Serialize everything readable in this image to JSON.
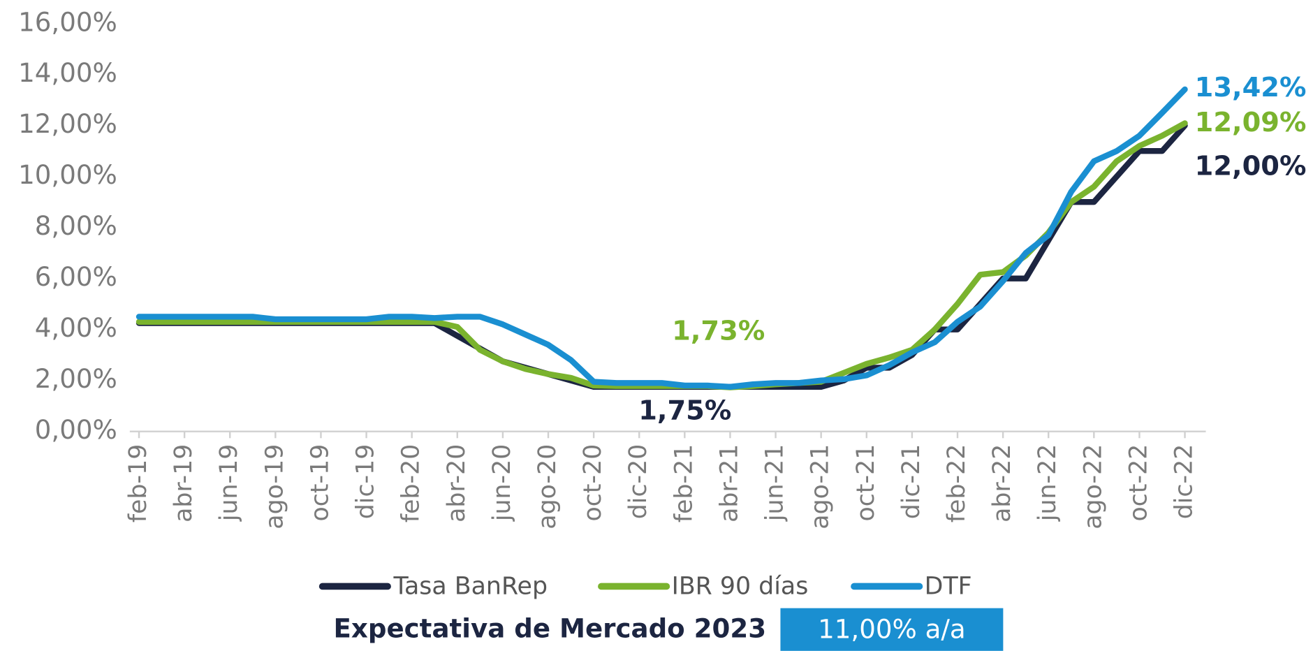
{
  "chart_data": {
    "type": "line",
    "categories": [
      "feb-19",
      null,
      "abr-19",
      null,
      "jun-19",
      null,
      "ago-19",
      null,
      "oct-19",
      null,
      "dic-19",
      null,
      "feb-20",
      null,
      "abr-20",
      null,
      "jun-20",
      null,
      "ago-20",
      null,
      "oct-20",
      null,
      "dic-20",
      null,
      "feb-21",
      null,
      "abr-21",
      null,
      "jun-21",
      null,
      "ago-21",
      null,
      "oct-21",
      null,
      "dic-21",
      null,
      "feb-22",
      null,
      "abr-22",
      null,
      "jun-22",
      null,
      "ago-22",
      null,
      "oct-22",
      null,
      "dic-22"
    ],
    "series": [
      {
        "name": "Tasa BanRep",
        "color": "#1c2541",
        "values": [
          4.25,
          4.25,
          4.25,
          4.25,
          4.25,
          4.25,
          4.25,
          4.25,
          4.25,
          4.25,
          4.25,
          4.25,
          4.25,
          4.25,
          3.75,
          3.25,
          2.75,
          2.5,
          2.25,
          2.0,
          1.75,
          1.75,
          1.75,
          1.75,
          1.75,
          1.75,
          1.75,
          1.75,
          1.75,
          1.75,
          1.75,
          2.0,
          2.5,
          2.5,
          3.0,
          4.0,
          4.0,
          5.0,
          6.0,
          6.0,
          7.5,
          9.0,
          9.0,
          10.0,
          11.0,
          11.0,
          12.0
        ]
      },
      {
        "name": "IBR 90 días",
        "color": "#7ab32e",
        "values": [
          4.3,
          4.3,
          4.3,
          4.3,
          4.3,
          4.3,
          4.3,
          4.3,
          4.3,
          4.3,
          4.3,
          4.3,
          4.3,
          4.3,
          4.1,
          3.2,
          2.75,
          2.45,
          2.25,
          2.1,
          1.8,
          1.78,
          1.78,
          1.78,
          1.78,
          1.78,
          1.73,
          1.78,
          1.85,
          1.9,
          1.95,
          2.3,
          2.65,
          2.9,
          3.2,
          4.0,
          5.0,
          6.15,
          6.25,
          6.9,
          7.8,
          9.0,
          9.6,
          10.6,
          11.2,
          11.6,
          12.09
        ]
      },
      {
        "name": "DTF",
        "color": "#1a8fd1",
        "values": [
          4.5,
          4.5,
          4.5,
          4.5,
          4.5,
          4.5,
          4.4,
          4.4,
          4.4,
          4.4,
          4.4,
          4.5,
          4.5,
          4.45,
          4.5,
          4.5,
          4.2,
          3.8,
          3.4,
          2.8,
          1.95,
          1.9,
          1.9,
          1.9,
          1.8,
          1.8,
          1.75,
          1.85,
          1.9,
          1.9,
          2.0,
          2.05,
          2.2,
          2.6,
          3.1,
          3.5,
          4.3,
          4.9,
          5.9,
          7.0,
          7.7,
          9.4,
          10.6,
          11.0,
          11.6,
          12.5,
          13.42
        ]
      }
    ],
    "ylim": [
      0,
      16
    ],
    "yticks": [
      {
        "value": 0,
        "label": "0,00%"
      },
      {
        "value": 2,
        "label": "2,00%"
      },
      {
        "value": 4,
        "label": "4,00%"
      },
      {
        "value": 6,
        "label": "6,00%"
      },
      {
        "value": 8,
        "label": "8,00%"
      },
      {
        "value": 10,
        "label": "10,00%"
      },
      {
        "value": 12,
        "label": "12,00%"
      },
      {
        "value": 14,
        "label": "14,00%"
      },
      {
        "value": 16,
        "label": "16,00%"
      }
    ],
    "annotations": [
      {
        "text": "13,42%",
        "color": "#1a8fd1"
      },
      {
        "text": "12,09%",
        "color": "#7ab32e"
      },
      {
        "text": "12,00%",
        "color": "#1c2541"
      },
      {
        "text": "1,73%",
        "color": "#7ab32e"
      },
      {
        "text": "1,75%",
        "color": "#1c2541"
      }
    ],
    "footer": {
      "label": "Expectativa de Mercado 2023",
      "value": "11,00% a/a",
      "color": "#1a8fd1"
    }
  }
}
